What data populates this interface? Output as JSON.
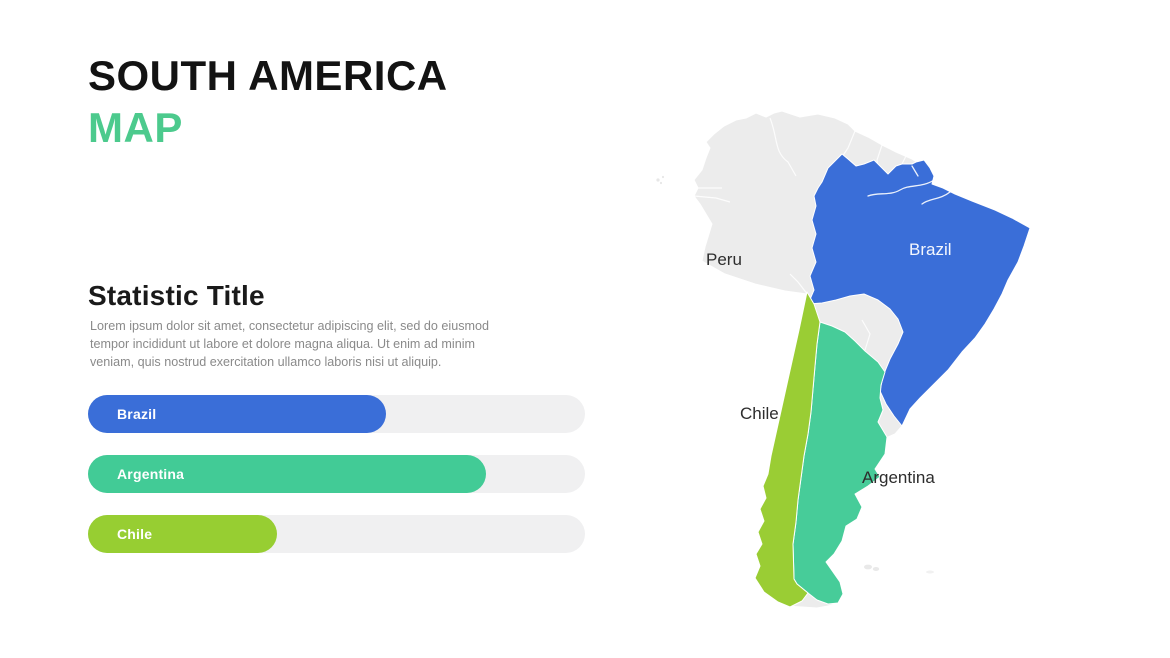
{
  "slide": {
    "title_line1": "SOUTH AMERICA",
    "title_line2": "MAP",
    "accent_color": "#4cca8d"
  },
  "statistic": {
    "title": "Statistic Title",
    "description": "Lorem ipsum dolor sit amet, consectetur adipiscing elit, sed do eiusmod tempor incididunt ut labore et dolore magna aliqua. Ut enim ad minim veniam, quis nostrud exercitation ullamco laboris nisi ut aliquip."
  },
  "bars": [
    {
      "label": "Brazil",
      "percent": 60,
      "color": "#3a6ed8"
    },
    {
      "label": "Argentina",
      "percent": 80,
      "color": "#42cb96"
    },
    {
      "label": "Chile",
      "percent": 38,
      "color": "#97ce32"
    }
  ],
  "map": {
    "colors": {
      "base": "#ececec",
      "brazil": "#3a6ed8",
      "argentina": "#47cc99",
      "chile": "#9acd34",
      "border": "#ffffff"
    },
    "labels": [
      {
        "text": "Peru",
        "color": "#2d2d2d"
      },
      {
        "text": "Brazil",
        "color": "#f4f7fd"
      },
      {
        "text": "Chile",
        "color": "#2d2d2d"
      },
      {
        "text": "Argentina",
        "color": "#2d2d2d"
      }
    ]
  },
  "chart_data": {
    "type": "bar",
    "orientation": "horizontal",
    "title": "Statistic Title",
    "categories": [
      "Brazil",
      "Argentina",
      "Chile"
    ],
    "values": [
      60,
      80,
      38
    ],
    "value_unit": "percent of track, estimated from bar fill (no numeric labels shown)",
    "colors": [
      "#3a6ed8",
      "#42cb96",
      "#97ce32"
    ],
    "track_color": "#f0f0f1"
  }
}
